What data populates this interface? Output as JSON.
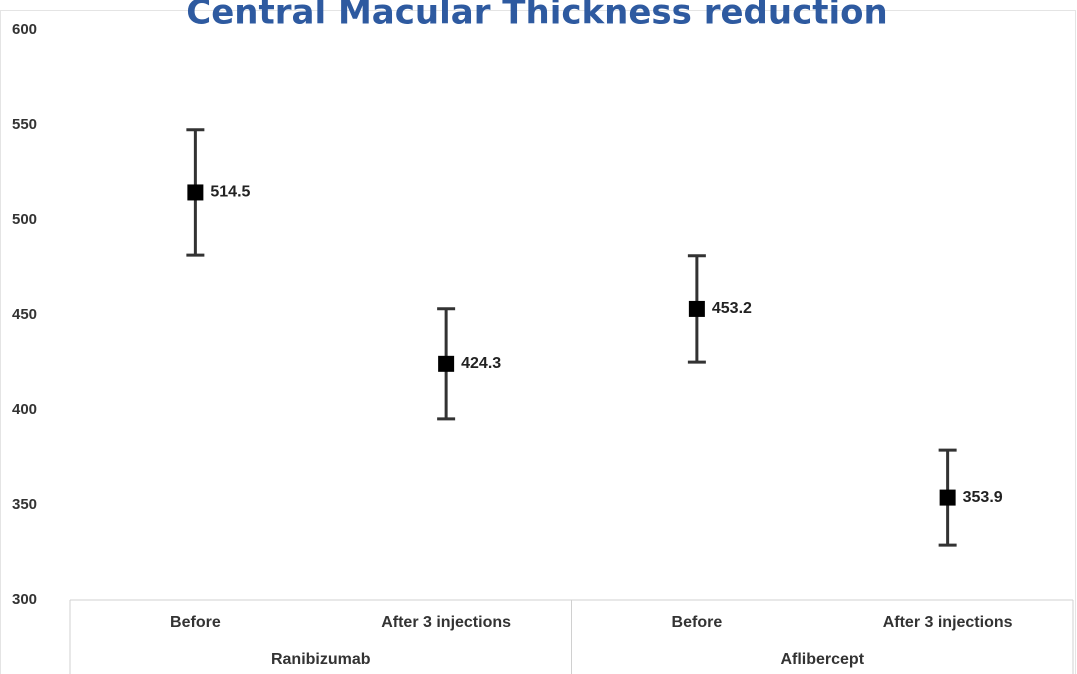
{
  "chart_data": {
    "type": "errorbar",
    "title": "Central Macular Thickness reduction",
    "categories": [
      "Before",
      "After 3 injections",
      "Before",
      "After 3 injections"
    ],
    "groups": [
      "Ranibizumab",
      "Aflibercept"
    ],
    "values": [
      514.5,
      424.3,
      453.2,
      353.9
    ],
    "errors": [
      33,
      29,
      28,
      25
    ],
    "color": "#000000",
    "ylim": [
      300,
      600
    ],
    "yticks": [
      300,
      350,
      400,
      450,
      500,
      550,
      600
    ],
    "grid": false
  }
}
